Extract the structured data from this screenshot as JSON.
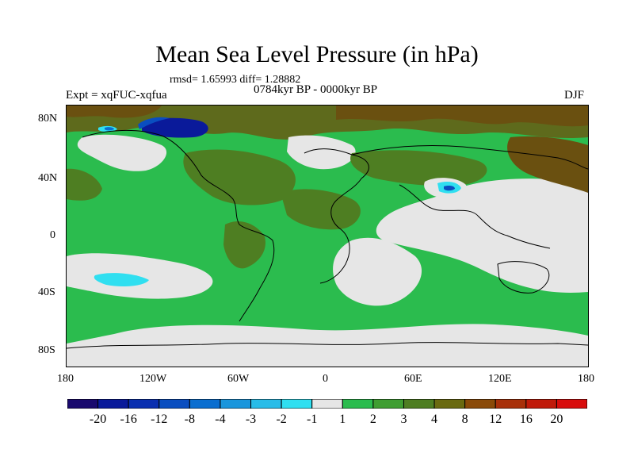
{
  "title": "Mean Sea Level Pressure (in hPa)",
  "stats": "rmsd= 1.65993 diff= 1.28882",
  "period": "0784kyr BP - 0000kyr BP",
  "expt": "Expt = xqFUC-xqfua",
  "season": "DJF",
  "lat_labels": [
    "80N",
    "40N",
    "0",
    "40S",
    "80S"
  ],
  "lon_labels": [
    "180",
    "120W",
    "60W",
    "0",
    "60E",
    "120E",
    "180"
  ],
  "colorbar": {
    "colors": [
      "#1a0a6e",
      "#0a1a9a",
      "#0a2fb0",
      "#0a4ec0",
      "#0a6ed0",
      "#1a96dc",
      "#28bce8",
      "#30dff0",
      "#e6e6e6",
      "#2bbc4e",
      "#3f9e32",
      "#4e7e22",
      "#6a6a10",
      "#8a4a08",
      "#a8300a",
      "#c01a0a",
      "#d80c0c"
    ],
    "labels": [
      "-20",
      "-16",
      "-12",
      "-8",
      "-4",
      "-3",
      "-2",
      "-1",
      "1",
      "2",
      "3",
      "4",
      "8",
      "12",
      "16",
      "20"
    ]
  },
  "legend_colors": {
    "gray": "#e6e6e6",
    "green": "#2bbc4e",
    "olive": "#4e7e22",
    "brown": "#6a5010",
    "cyan": "#30dff0",
    "blue": "#0a4ec0",
    "navy": "#0a1a9a"
  }
}
